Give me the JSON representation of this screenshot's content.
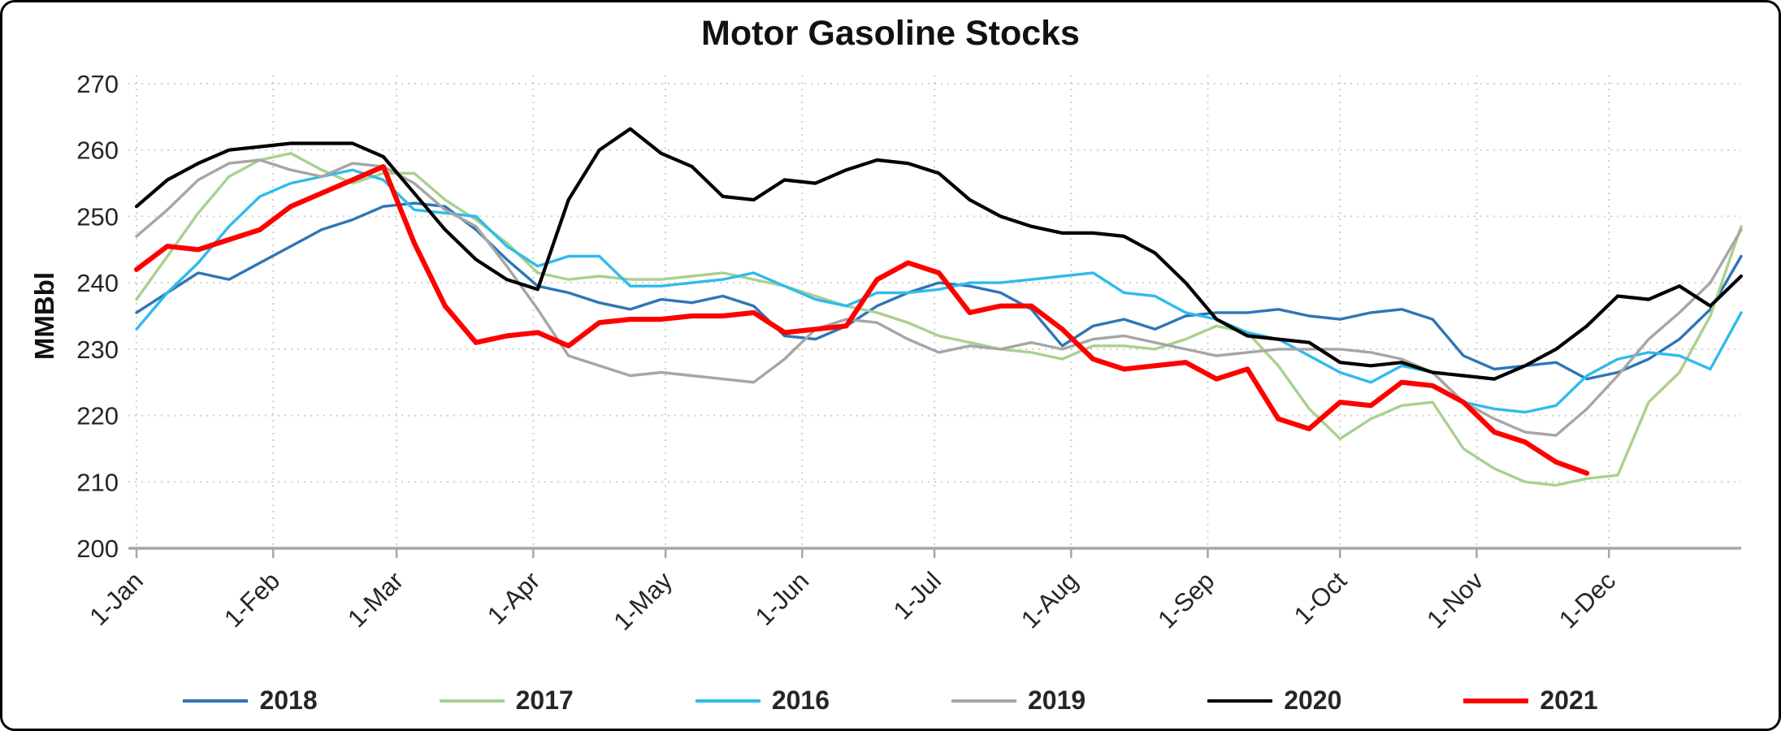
{
  "chart_data": {
    "type": "line",
    "title": "Motor Gasoline Stocks",
    "xlabel": "",
    "ylabel": "MMBbl",
    "ylim": [
      200,
      270
    ],
    "yticks": [
      200,
      210,
      220,
      230,
      240,
      250,
      260,
      270
    ],
    "xtick_labels": [
      "1-Jan",
      "1-Feb",
      "1-Mar",
      "1-Apr",
      "1-May",
      "1-Jun",
      "1-Jul",
      "1-Aug",
      "1-Sep",
      "1-Oct",
      "1-Nov",
      "1-Dec"
    ],
    "xtick_days": [
      0,
      31,
      59,
      90,
      120,
      151,
      181,
      212,
      243,
      273,
      304,
      334
    ],
    "x_total_days": 364,
    "x_interval_days": 7,
    "grid": true,
    "legend_position": "bottom",
    "gridline_color": "#D0D0D0",
    "axis_line_color": "#A6A6A6",
    "series": [
      {
        "name": "2018",
        "color": "#2E75B6",
        "width": 3.4,
        "values": [
          235.5,
          238.5,
          241.5,
          240.5,
          243,
          245.5,
          248,
          249.5,
          251.5,
          252,
          251.5,
          248,
          243.5,
          239.5,
          238.5,
          237,
          236,
          237.5,
          237,
          238,
          236.5,
          232,
          231.5,
          233.5,
          236.5,
          238.5,
          240,
          239.5,
          238.5,
          236,
          230.5,
          233.5,
          234.5,
          233,
          235,
          235.5,
          235.5,
          236,
          235,
          234.5,
          235.5,
          236,
          234.5,
          229,
          227,
          227.5,
          228,
          225.5,
          226.5,
          228.5,
          231.5,
          236,
          244
        ]
      },
      {
        "name": "2017",
        "color": "#A9D18E",
        "width": 3.4,
        "values": [
          237.5,
          244,
          250.5,
          256,
          258.5,
          259.5,
          257,
          255,
          256.5,
          256.5,
          252.5,
          249.5,
          246,
          241.5,
          240.5,
          241,
          240.5,
          240.5,
          241,
          241.5,
          240.5,
          239.5,
          238,
          236.5,
          235.5,
          234,
          232,
          231,
          230,
          229.5,
          228.5,
          230.5,
          230.5,
          230,
          231.5,
          233.5,
          232.5,
          227.5,
          221,
          216.5,
          219.5,
          221.5,
          222,
          215,
          212,
          210,
          209.5,
          210.5,
          211,
          222,
          226.5,
          235,
          248.5
        ]
      },
      {
        "name": "2016",
        "color": "#2FBBEC",
        "width": 3.4,
        "values": [
          233,
          238.5,
          243,
          248.5,
          253,
          255,
          256,
          257,
          255.5,
          251,
          250.5,
          250,
          245.5,
          242.5,
          244,
          244,
          239.5,
          239.5,
          240,
          240.5,
          241.5,
          239.5,
          237.5,
          236.5,
          238.5,
          238.5,
          239,
          240,
          240,
          240.5,
          241,
          241.5,
          238.5,
          238,
          235.5,
          234.5,
          232.5,
          231.5,
          229,
          226.5,
          225,
          227.5,
          226.5,
          222,
          221,
          220.5,
          221.5,
          226,
          228.5,
          229.5,
          229,
          227,
          235.5
        ]
      },
      {
        "name": "2019",
        "color": "#A6A6A6",
        "width": 3.4,
        "values": [
          247,
          251,
          255.5,
          258,
          258.5,
          257,
          256,
          258,
          257.5,
          255,
          251,
          248.5,
          242.5,
          236,
          229,
          227.5,
          226,
          226.5,
          226,
          225.5,
          225,
          228.5,
          233,
          234.5,
          234,
          231.5,
          229.5,
          230.5,
          230,
          231,
          230,
          231.5,
          232,
          231,
          230,
          229,
          229.5,
          230,
          230,
          230,
          229.5,
          228.5,
          226.5,
          222,
          219.5,
          217.5,
          217,
          221,
          226,
          231.5,
          235.5,
          240,
          248
        ]
      },
      {
        "name": "2020",
        "color": "#000000",
        "width": 4.2,
        "values": [
          251.5,
          255.5,
          258,
          260,
          260.5,
          261,
          261,
          261,
          259,
          253.5,
          248,
          243.5,
          240.5,
          239,
          252.5,
          260,
          263.2,
          259.5,
          257.5,
          253,
          252.5,
          255.5,
          255,
          257,
          258.5,
          258,
          256.5,
          252.5,
          250,
          248.5,
          247.5,
          247.5,
          247,
          244.5,
          240,
          234.5,
          232,
          231.5,
          231,
          228,
          227.5,
          228,
          226.5,
          226,
          225.5,
          227.5,
          230,
          233.5,
          238,
          237.5,
          239.5,
          236.5,
          241
        ]
      },
      {
        "name": "2021",
        "color": "#FF0000",
        "width": 6.2,
        "values": [
          242,
          245.5,
          245,
          246.5,
          248,
          251.5,
          253.5,
          255.5,
          257.5,
          246,
          236.5,
          231,
          232,
          232.5,
          230.5,
          234,
          234.5,
          234.5,
          235,
          235,
          235.5,
          232.5,
          233,
          233.5,
          240.5,
          243,
          241.5,
          235.5,
          236.5,
          236.5,
          233,
          228.5,
          227,
          227.5,
          228,
          225.5,
          227,
          219.5,
          218,
          222,
          221.5,
          225,
          224.5,
          222,
          217.5,
          216,
          213,
          211.3
        ]
      }
    ]
  }
}
